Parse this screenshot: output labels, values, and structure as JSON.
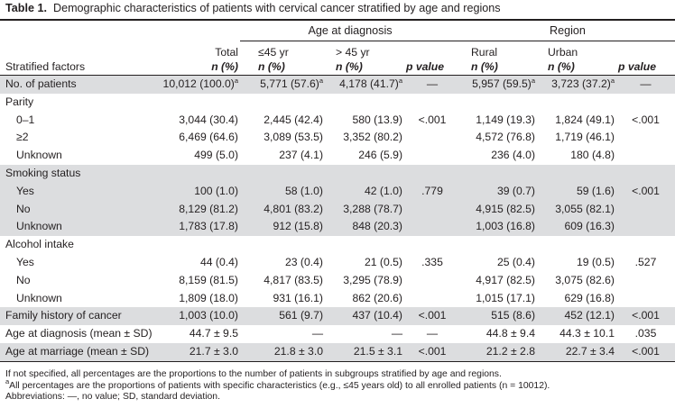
{
  "caption": {
    "label": "Table 1.",
    "text": "Demographic characteristics of patients with cervical cancer stratified by age and regions"
  },
  "headers": {
    "group_age": "Age at diagnosis",
    "group_region": "Region",
    "stratified_factors": "Stratified factors",
    "total_name": "Total",
    "total_unit": "n (%)",
    "le45_name": "≤45 yr",
    "le45_unit": "n (%)",
    "gt45_name": "> 45 yr",
    "gt45_unit": "n (%)",
    "pvalue_age": "p value",
    "rural_name": "Rural",
    "rural_unit": "n (%)",
    "urban_name": "Urban",
    "urban_unit": "n (%)",
    "pvalue_region": "p value"
  },
  "rows": [
    {
      "label": "No. of patients",
      "total": "10,012 (100.0)",
      "total_sup": "a",
      "le45": "5,771 (57.6)",
      "le45_sup": "a",
      "gt45": "4,178 (41.7)",
      "gt45_sup": "a",
      "p1": "—",
      "rural": "5,957 (59.5)",
      "rural_sup": "a",
      "urban": "3,723 (37.2)",
      "urban_sup": "a",
      "p2": "—"
    },
    {
      "label": "Parity"
    },
    {
      "label": "0–1",
      "total": "3,044 (30.4)",
      "le45": "2,445 (42.4)",
      "gt45": "580 (13.9)",
      "p1": "<.001",
      "rural": "1,149 (19.3)",
      "urban": "1,824 (49.1)",
      "p2": "<.001"
    },
    {
      "label": "≥2",
      "total": "6,469 (64.6)",
      "le45": "3,089 (53.5)",
      "gt45": "3,352 (80.2)",
      "rural": "4,572 (76.8)",
      "urban": "1,719 (46.1)"
    },
    {
      "label": "Unknown",
      "total": "499 (5.0)",
      "le45": "237 (4.1)",
      "gt45": "246 (5.9)",
      "rural": "236 (4.0)",
      "urban": "180 (4.8)"
    },
    {
      "label": "Smoking status"
    },
    {
      "label": "Yes",
      "total": "100 (1.0)",
      "le45": "58 (1.0)",
      "gt45": "42 (1.0)",
      "p1": ".779",
      "rural": "39 (0.7)",
      "urban": "59 (1.6)",
      "p2": "<.001"
    },
    {
      "label": "No",
      "total": "8,129 (81.2)",
      "le45": "4,801 (83.2)",
      "gt45": "3,288 (78.7)",
      "rural": "4,915 (82.5)",
      "urban": "3,055 (82.1)"
    },
    {
      "label": "Unknown",
      "total": "1,783 (17.8)",
      "le45": "912 (15.8)",
      "gt45": "848 (20.3)",
      "rural": "1,003 (16.8)",
      "urban": "609 (16.3)"
    },
    {
      "label": "Alcohol intake"
    },
    {
      "label": "Yes",
      "total": "44 (0.4)",
      "le45": "23 (0.4)",
      "gt45": "21 (0.5)",
      "p1": ".335",
      "rural": "25 (0.4)",
      "urban": "19 (0.5)",
      "p2": ".527"
    },
    {
      "label": "No",
      "total": "8,159 (81.5)",
      "le45": "4,817 (83.5)",
      "gt45": "3,295 (78.9)",
      "rural": "4,917 (82.5)",
      "urban": "3,075 (82.6)"
    },
    {
      "label": "Unknown",
      "total": "1,809 (18.0)",
      "le45": "931 (16.1)",
      "gt45": "862 (20.6)",
      "rural": "1,015 (17.1)",
      "urban": "629 (16.8)"
    },
    {
      "label": "Family history of cancer",
      "total": "1,003 (10.0)",
      "le45": "561 (9.7)",
      "gt45": "437 (10.4)",
      "p1": "<.001",
      "rural": "515 (8.6)",
      "urban": "452 (12.1)",
      "p2": "<.001"
    },
    {
      "label": "Age at diagnosis (mean ± SD)",
      "total": "44.7 ± 9.5",
      "le45": "—",
      "gt45": "—",
      "p1": "—",
      "rural": "44.8 ± 9.4",
      "urban": "44.3 ± 10.1",
      "p2": ".035"
    },
    {
      "label": "Age at marriage (mean ± SD)",
      "total": "21.7 ± 3.0",
      "le45": "21.8 ± 3.0",
      "gt45": "21.5 ± 3.1",
      "p1": "<.001",
      "rural": "21.2 ± 2.8",
      "urban": "22.7 ± 3.4",
      "p2": "<.001"
    }
  ],
  "notes": {
    "note1": "If not specified, all percentages are the proportions to the number of patients in subgroups stratified by age and regions.",
    "note2_sup": "a",
    "note2": "All percentages are the proportions of patients with specific characteristics (e.g., ≤45 years old) to all enrolled patients (n = 10012).",
    "note3": "Abbreviations: —, no value; SD, standard deviation."
  }
}
